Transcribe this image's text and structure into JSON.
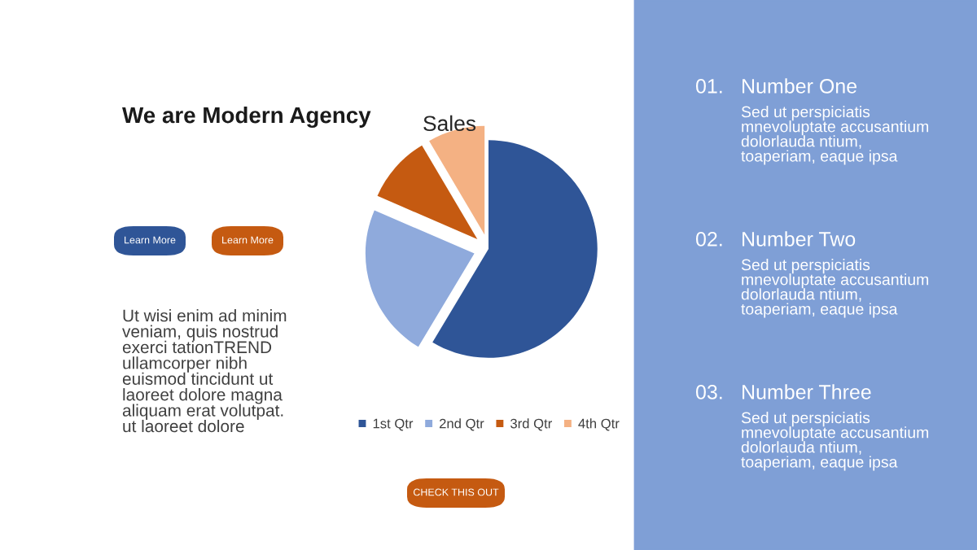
{
  "chart_data": {
    "type": "pie",
    "title": "Sales",
    "categories": [
      "1st Qtr",
      "2nd Qtr",
      "3rd Qtr",
      "4th Qtr"
    ],
    "values": [
      58.6,
      22.9,
      10.0,
      8.5
    ],
    "colors": [
      "#2f5597",
      "#8faadc",
      "#c55a11",
      "#f4b183"
    ],
    "legend": "bottom",
    "annotations": [
      "We are Modern Agency",
      "Learn More",
      "Learn More",
      "Ut wisi enim ad minim veniam, quis nostrud exerci tationTREND ullamcorper nibh euismod tincidunt ut laoreet dolore magna aliquam erat volutpat. ut laoreet dolore",
      "CHECK THIS OUT",
      "01.",
      "Number One",
      "Sed ut perspiciatis mnevoluptate accusantium dolorlauda ntium, toaperiam, eaque ipsa",
      "02.",
      "Number Two",
      "Sed ut perspiciatis mnevoluptate accusantium dolorlauda ntium, toaperiam, eaque ipsa",
      "03.",
      "Number Three",
      "Sed ut perspiciatis mnevoluptate accusantium dolorlauda ntium, toaperiam, eaque ipsa"
    ]
  }
}
